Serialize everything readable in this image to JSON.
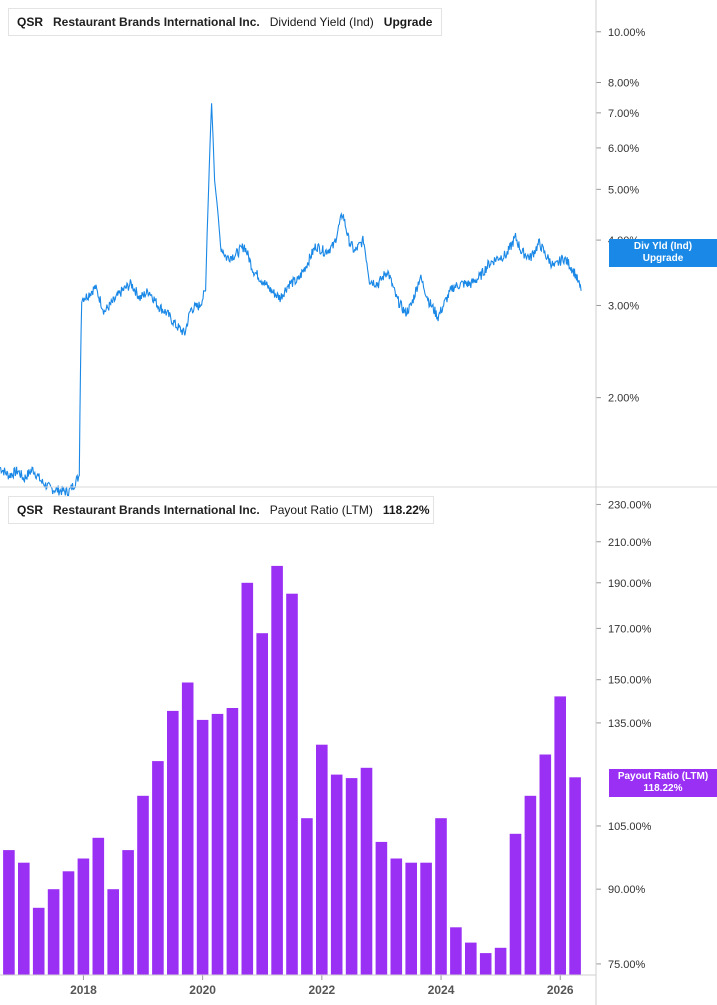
{
  "top_panel": {
    "legend": {
      "ticker": "QSR",
      "name": "Restaurant Brands International Inc.",
      "metric": "Dividend Yield (Ind)",
      "upgrade": "Upgrade"
    },
    "tag_line1": "Div Yld (Ind)",
    "tag_line2": "Upgrade",
    "color": "#1a88e6"
  },
  "bottom_panel": {
    "legend": {
      "ticker": "QSR",
      "name": "Restaurant Brands International Inc.",
      "metric": "Payout Ratio (LTM)",
      "value": "118.22%"
    },
    "tag_line1": "Payout Ratio (LTM)",
    "tag_line2": "118.22%",
    "color": "#9b30f5"
  },
  "chart_data": [
    {
      "type": "line",
      "scale": "log",
      "ylim": [
        1.35,
        11.5
      ],
      "y_ticks": [
        "10.00%",
        "8.00%",
        "7.00%",
        "6.00%",
        "5.00%",
        "4.00%",
        "3.00%",
        "2.00%"
      ],
      "y_tick_values": [
        10,
        8,
        7,
        6,
        5,
        4,
        3,
        2
      ],
      "xlim": [
        2016.6,
        2026.6
      ],
      "series": [
        {
          "x": [
            2016.6,
            2016.75,
            2016.9,
            2017.0,
            2017.15,
            2017.3,
            2017.45,
            2017.6,
            2017.75,
            2017.85,
            2017.93,
            2017.97,
            2018.05,
            2018.2,
            2018.35,
            2018.5,
            2018.65,
            2018.8,
            2018.95,
            2019.1,
            2019.25,
            2019.4,
            2019.55,
            2019.7,
            2019.8,
            2019.95,
            2020.05,
            2020.1,
            2020.15,
            2020.2,
            2020.25,
            2020.3,
            2020.4,
            2020.55,
            2020.7,
            2020.85,
            2021.0,
            2021.15,
            2021.3,
            2021.45,
            2021.6,
            2021.75,
            2021.9,
            2022.05,
            2022.2,
            2022.35,
            2022.45,
            2022.55,
            2022.7,
            2022.8,
            2022.95,
            2023.1,
            2023.25,
            2023.4,
            2023.5,
            2023.65,
            2023.8,
            2023.95,
            2024.1,
            2024.2,
            2024.35,
            2024.5,
            2024.65,
            2024.8,
            2024.95,
            2025.1,
            2025.25,
            2025.35,
            2025.5,
            2025.65,
            2025.75,
            2025.9,
            2026.05,
            2026.15,
            2026.25,
            2026.35
          ],
          "y": [
            1.47,
            1.42,
            1.45,
            1.4,
            1.46,
            1.38,
            1.34,
            1.33,
            1.32,
            1.37,
            1.42,
            3.1,
            3.12,
            3.25,
            2.92,
            3.05,
            3.2,
            3.3,
            3.1,
            3.2,
            3.0,
            2.9,
            2.75,
            2.65,
            2.95,
            3.0,
            3.2,
            5.0,
            7.3,
            5.2,
            4.6,
            3.9,
            3.7,
            3.75,
            3.9,
            3.5,
            3.35,
            3.2,
            3.1,
            3.3,
            3.35,
            3.6,
            3.9,
            3.8,
            3.9,
            4.5,
            4.0,
            3.8,
            4.0,
            3.35,
            3.3,
            3.5,
            3.1,
            2.9,
            3.0,
            3.4,
            3.05,
            2.85,
            3.1,
            3.25,
            3.3,
            3.3,
            3.4,
            3.6,
            3.7,
            3.75,
            4.05,
            3.8,
            3.7,
            3.95,
            3.75,
            3.55,
            3.7,
            3.6,
            3.45,
            3.2
          ]
        }
      ]
    },
    {
      "type": "bar",
      "scale": "log",
      "ylim": [
        73,
        240
      ],
      "y_ticks": [
        "230.00%",
        "210.00%",
        "190.00%",
        "170.00%",
        "150.00%",
        "135.00%",
        "105.00%",
        "90.00%",
        "75.00%"
      ],
      "y_tick_values": [
        230,
        210,
        190,
        170,
        150,
        135,
        105,
        90,
        75
      ],
      "x_ticks": [
        "2018",
        "2020",
        "2022",
        "2024",
        "2026"
      ],
      "x_tick_values": [
        2018,
        2020,
        2022,
        2024,
        2026
      ],
      "xlim": [
        2016.6,
        2026.6
      ],
      "series": [
        {
          "name": "Payout Ratio (LTM)",
          "x": [
            2016.75,
            2017.0,
            2017.25,
            2017.5,
            2017.75,
            2018.0,
            2018.25,
            2018.5,
            2018.75,
            2019.0,
            2019.25,
            2019.5,
            2019.75,
            2020.0,
            2020.25,
            2020.5,
            2020.75,
            2021.0,
            2021.25,
            2021.5,
            2021.75,
            2022.0,
            2022.25,
            2022.5,
            2022.75,
            2023.0,
            2023.25,
            2023.5,
            2023.75,
            2024.0,
            2024.25,
            2024.5,
            2024.75,
            2025.0,
            2025.25,
            2025.5,
            2025.75,
            2026.0,
            2026.25
          ],
          "values": [
            99,
            96,
            86,
            90,
            94,
            97,
            102,
            90,
            99,
            113,
            123,
            139,
            149,
            136,
            138,
            140,
            190,
            168,
            198,
            185,
            107,
            128,
            119,
            118,
            121,
            101,
            97,
            96,
            96,
            107,
            82,
            79,
            77,
            78,
            103,
            113,
            125,
            144,
            118.22
          ]
        }
      ]
    }
  ]
}
